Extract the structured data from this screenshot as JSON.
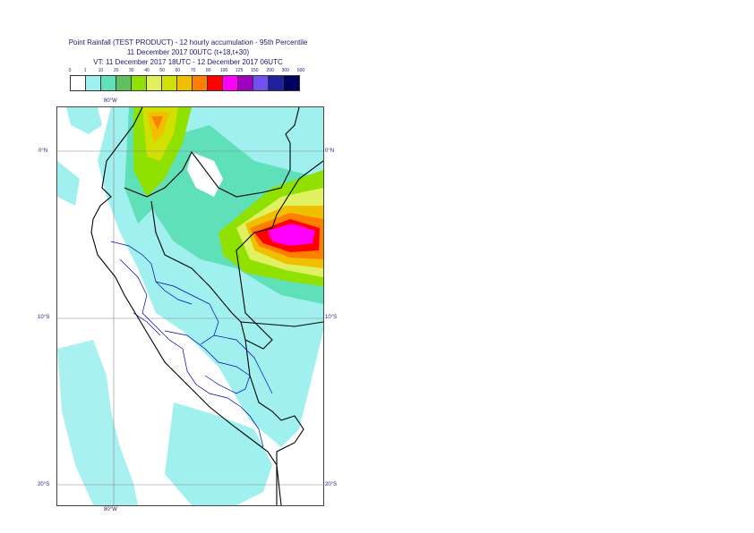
{
  "title": {
    "line1": "Point Rainfall (TEST PRODUCT) - 12 hourly accumulation - 95th Percentile",
    "line2": "11 December 2017 00UTC (t+18,t+30)",
    "line3": "VT: 11 December 2017 18UTC - 12 December 2017 06UTC"
  },
  "legend": {
    "thresholds": [
      "0",
      "1",
      "10",
      "20",
      "30",
      "40",
      "50",
      "60",
      "70",
      "80",
      "100",
      "125",
      "150",
      "200",
      "300",
      "500"
    ],
    "colors": [
      "#ffffff",
      "#a0f0f0",
      "#60e0b8",
      "#60c060",
      "#90e000",
      "#e0f060",
      "#d0e000",
      "#f0c000",
      "#ff8000",
      "#ff0000",
      "#ff00ff",
      "#a000c0",
      "#7050f0",
      "#2020a0",
      "#000060"
    ]
  },
  "map": {
    "lon_labels": {
      "top": "80°W",
      "bottom": "80°W"
    },
    "lat_labels": {
      "left": [
        "0°N",
        "10°S",
        "20°S"
      ],
      "right": [
        "0°N",
        "10°S",
        "20°S"
      ]
    },
    "boundary_color": "#000000",
    "admin_boundary_color": "#0000aa"
  }
}
